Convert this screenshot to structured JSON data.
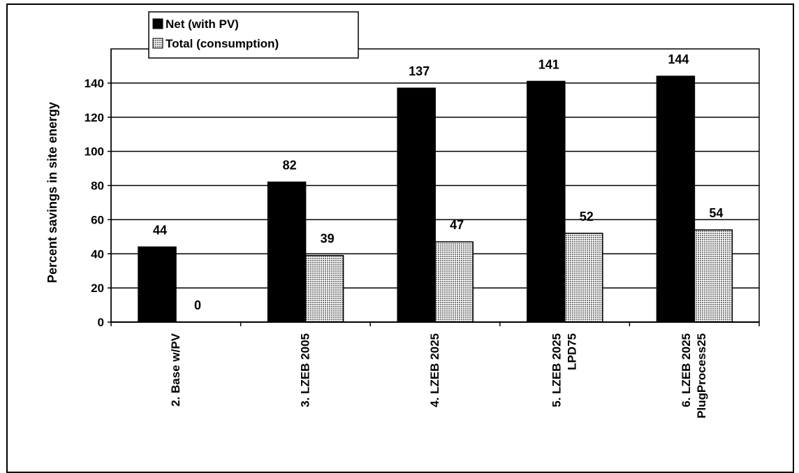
{
  "chart_data": {
    "type": "bar",
    "title": "",
    "xlabel": "",
    "ylabel": "Percent savings in site energy",
    "ylim": [
      0,
      160
    ],
    "yticks": [
      0,
      20,
      40,
      60,
      80,
      100,
      120,
      140
    ],
    "grid": true,
    "legend_position": "top-left",
    "categories": [
      [
        "2. Base w/PV"
      ],
      [
        "3. LZEB 2005"
      ],
      [
        "4. LZEB 2025"
      ],
      [
        "5. LZEB 2025",
        "LPD75"
      ],
      [
        "6. LZEB 2025",
        "PlugProcess25"
      ]
    ],
    "series": [
      {
        "name": "Net (with PV)",
        "values": [
          44,
          82,
          137,
          141,
          144
        ],
        "labels": [
          "44",
          "82",
          "137",
          "141",
          "144"
        ],
        "color": "#000000",
        "pattern": "solid"
      },
      {
        "name": "Total (consumption)",
        "values": [
          0,
          39,
          47,
          52,
          54
        ],
        "labels": [
          "0",
          "39",
          "47",
          "52",
          "54"
        ],
        "color": "#bfbfbf",
        "pattern": "crosshatch"
      }
    ]
  }
}
